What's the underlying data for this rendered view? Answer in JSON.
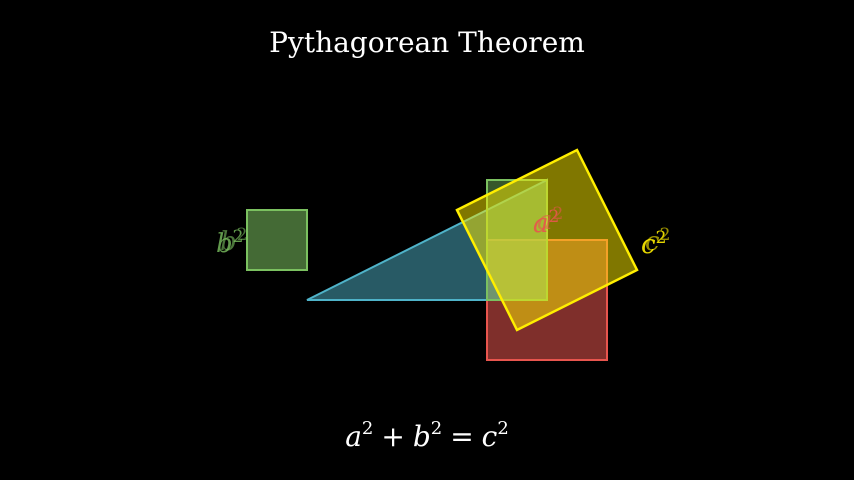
{
  "title": "Pythagorean Theorem",
  "colors": {
    "background": "#000000",
    "text": "#ffffff",
    "triangle": "#4fb3c9",
    "square_a": "#e8554e",
    "square_b": "#7bc160",
    "square_c": "#ffee00"
  },
  "labels": {
    "a_var": "a",
    "b_var": "b",
    "c_var": "c",
    "power": "2"
  },
  "equation": {
    "a": "a",
    "b": "b",
    "c": "c",
    "power": "2",
    "plus": "+",
    "equals": "="
  }
}
